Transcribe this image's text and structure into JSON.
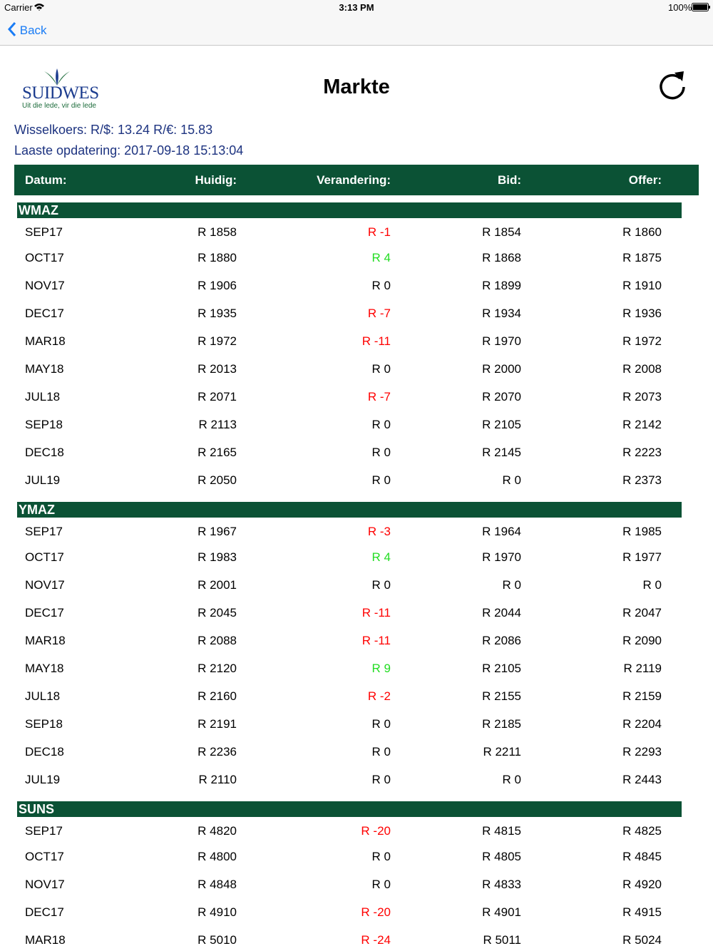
{
  "status": {
    "carrier": "Carrier",
    "time": "3:13 PM",
    "battery": "100%"
  },
  "nav": {
    "back": "Back"
  },
  "header": {
    "logo": "SUIDWES",
    "tagline": "Uit die lede, vir die lede",
    "title": "Markte"
  },
  "info": {
    "exchange": "Wisselkoers: R/$: 13.24 R/€: 15.83",
    "updated": "Laaste opdatering: 2017-09-18 15:13:04"
  },
  "colors": {
    "down": "#ff0000",
    "up": "#22dd22",
    "flat": "#000000",
    "bar": "#0b5235"
  },
  "table": {
    "columns": [
      "Datum:",
      "Huidig:",
      "Verandering:",
      "Bid:",
      "Offer:"
    ],
    "sections": [
      {
        "name": "WMAZ",
        "rows": [
          [
            "SEP17",
            "R 1858",
            "R -1",
            "R 1854",
            "R 1860"
          ],
          [
            "OCT17",
            "R 1880",
            "R 4",
            "R 1868",
            "R 1875"
          ],
          [
            "NOV17",
            "R 1906",
            "R 0",
            "R 1899",
            "R 1910"
          ],
          [
            "DEC17",
            "R 1935",
            "R -7",
            "R 1934",
            "R 1936"
          ],
          [
            "MAR18",
            "R 1972",
            "R -11",
            "R 1970",
            "R 1972"
          ],
          [
            "MAY18",
            "R 2013",
            "R 0",
            "R 2000",
            "R 2008"
          ],
          [
            "JUL18",
            "R 2071",
            "R -7",
            "R 2070",
            "R 2073"
          ],
          [
            "SEP18",
            "R 2113",
            "R 0",
            "R 2105",
            "R 2142"
          ],
          [
            "DEC18",
            "R 2165",
            "R 0",
            "R 2145",
            "R 2223"
          ],
          [
            "JUL19",
            "R 2050",
            "R 0",
            "R 0",
            "R 2373"
          ]
        ]
      },
      {
        "name": "YMAZ",
        "rows": [
          [
            "SEP17",
            "R 1967",
            "R -3",
            "R 1964",
            "R 1985"
          ],
          [
            "OCT17",
            "R 1983",
            "R 4",
            "R 1970",
            "R 1977"
          ],
          [
            "NOV17",
            "R 2001",
            "R 0",
            "R 0",
            "R 0"
          ],
          [
            "DEC17",
            "R 2045",
            "R -11",
            "R 2044",
            "R 2047"
          ],
          [
            "MAR18",
            "R 2088",
            "R -11",
            "R 2086",
            "R 2090"
          ],
          [
            "MAY18",
            "R 2120",
            "R 9",
            "R 2105",
            "R 2119"
          ],
          [
            "JUL18",
            "R 2160",
            "R -2",
            "R 2155",
            "R 2159"
          ],
          [
            "SEP18",
            "R 2191",
            "R 0",
            "R 2185",
            "R 2204"
          ],
          [
            "DEC18",
            "R 2236",
            "R 0",
            "R 2211",
            "R 2293"
          ],
          [
            "JUL19",
            "R 2110",
            "R 0",
            "R 0",
            "R 2443"
          ]
        ]
      },
      {
        "name": "SUNS",
        "rows": [
          [
            "SEP17",
            "R 4820",
            "R -20",
            "R 4815",
            "R 4825"
          ],
          [
            "OCT17",
            "R 4800",
            "R 0",
            "R 4805",
            "R 4845"
          ],
          [
            "NOV17",
            "R 4848",
            "R 0",
            "R 4833",
            "R 4920"
          ],
          [
            "DEC17",
            "R 4910",
            "R -20",
            "R 4901",
            "R 4915"
          ],
          [
            "MAR18",
            "R 5010",
            "R -24",
            "R 5011",
            "R 5024"
          ]
        ]
      }
    ]
  }
}
